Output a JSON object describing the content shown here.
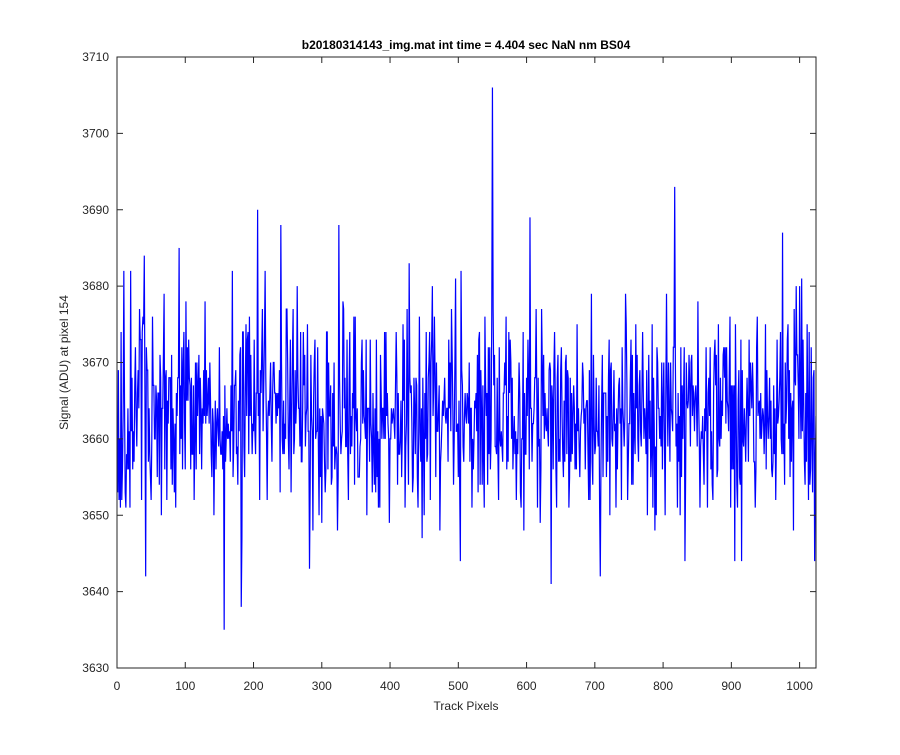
{
  "chart_data": {
    "type": "line",
    "title": "b20180314143_img.mat int time = 4.404 sec  NaN nm BS04",
    "xlabel": "Track Pixels",
    "ylabel": "Signal (ADU) at pixel 154",
    "xlim": [
      0,
      1024
    ],
    "ylim": [
      3630,
      3710
    ],
    "xticks": [
      0,
      100,
      200,
      300,
      400,
      500,
      600,
      700,
      800,
      900,
      1000
    ],
    "yticks": [
      3630,
      3640,
      3650,
      3660,
      3670,
      3680,
      3690,
      3700,
      3710
    ],
    "grid": false,
    "line_color": "#0000ff",
    "series": [
      {
        "noise_model": "approximately Gaussian noise around 3663 ADU, std ~7 ADU, one sample per track pixel",
        "x_start": 1,
        "x_end": 1024,
        "baseline": 3663,
        "std": 7,
        "notable_points": [
          {
            "x": 10,
            "y": 3682
          },
          {
            "x": 13,
            "y": 3651
          },
          {
            "x": 40,
            "y": 3684
          },
          {
            "x": 42,
            "y": 3642
          },
          {
            "x": 91,
            "y": 3685
          },
          {
            "x": 157,
            "y": 3635
          },
          {
            "x": 182,
            "y": 3638
          },
          {
            "x": 206,
            "y": 3690
          },
          {
            "x": 240,
            "y": 3688
          },
          {
            "x": 282,
            "y": 3643
          },
          {
            "x": 325,
            "y": 3688
          },
          {
            "x": 428,
            "y": 3683
          },
          {
            "x": 550,
            "y": 3706
          },
          {
            "x": 605,
            "y": 3689
          },
          {
            "x": 636,
            "y": 3641
          },
          {
            "x": 708,
            "y": 3642
          },
          {
            "x": 817,
            "y": 3693
          },
          {
            "x": 905,
            "y": 3644
          },
          {
            "x": 975,
            "y": 3687
          },
          {
            "x": 1000,
            "y": 3680
          }
        ]
      }
    ]
  }
}
